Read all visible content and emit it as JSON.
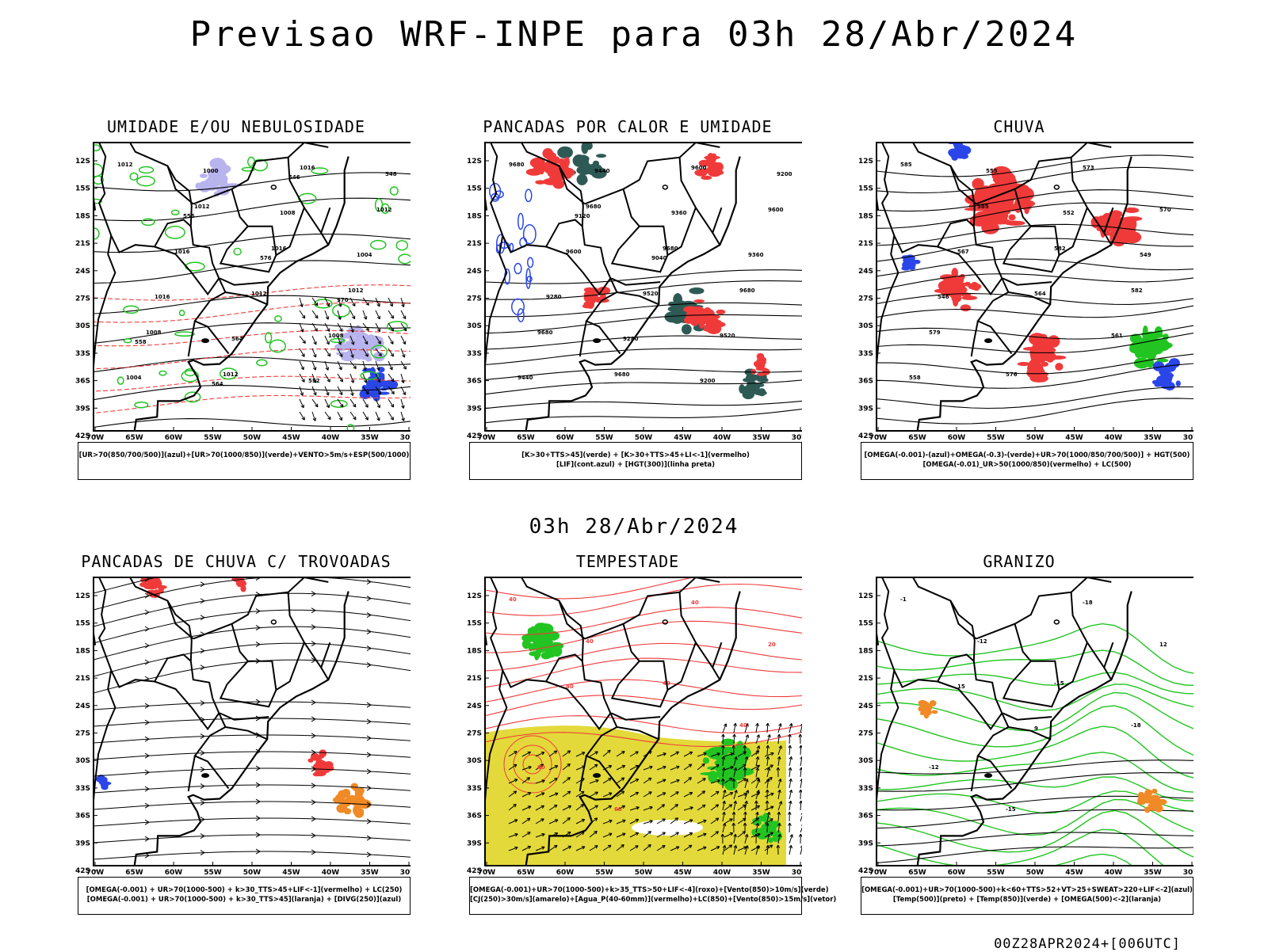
{
  "title": "Previsao WRF-INPE  para 03h 28/Abr/2024",
  "mid_time": "03h 28/Abr/2024",
  "footer": "00Z28APR2024+[006UTC]",
  "axes": {
    "lat_labels": [
      "12S",
      "15S",
      "18S",
      "21S",
      "24S",
      "27S",
      "30S",
      "33S",
      "36S",
      "39S",
      "42S"
    ],
    "lon_labels": [
      "70W",
      "65W",
      "60W",
      "55W",
      "50W",
      "45W",
      "40W",
      "35W",
      "30W"
    ]
  },
  "colors": {
    "red": "#f03a3a",
    "green": "#22c422",
    "blue": "#2a46e8",
    "lightblue": "#b8b4ee",
    "orange": "#f08a26",
    "yellow": "#e3d93a",
    "darkteal": "#2e5a55",
    "black": "#000000"
  },
  "panels": [
    {
      "id": "umidade",
      "title": "UMIDADE E/OU NEBULOSIDADE",
      "legend": [
        "[UR>70(850/700/500)](azul)+[UR>70(1000/850)](verde)+VENTO>5m/s+ESP(500/1000)"
      ],
      "contour_labels": [
        "1012",
        "1012",
        "1016",
        "1012",
        "1008",
        "1012",
        "1016",
        "1012",
        "1016",
        "1012",
        "1008",
        "1004",
        "1000",
        "1008",
        "1004",
        "1016",
        "564",
        "552",
        "548",
        "556",
        "576",
        "570",
        "558",
        "564",
        "546"
      ]
    },
    {
      "id": "pancadas-calor",
      "title": "PANCADAS POR CALOR E UMIDADE",
      "legend": [
        "[K>30+TTS>45](verde) + [K>30+TTS>45+LI<-1](vermelho)",
        "[LIF](cont.azul) + [HGT(300)](linha preta)"
      ],
      "contour_labels": [
        "9680",
        "9680",
        "9680",
        "9680",
        "9680",
        "9680",
        "9600",
        "9600",
        "9600",
        "9520",
        "9520",
        "9440",
        "9440",
        "9360",
        "9360",
        "9280",
        "9280",
        "9200",
        "9200",
        "9120",
        "9040"
      ]
    },
    {
      "id": "chuva",
      "title": "CHUVA",
      "legend": [
        "[OMEGA(-0.001)-(azul)+OMEGA(-0.3)-(verde)+UR>70(1000/850/700/500)] + HGT(500)",
        "[OMEGA(-0.01)_UR>50(1000/850)(vermelho) + LC(500)"
      ],
      "contour_labels": [
        "585",
        "585",
        "582",
        "582",
        "579",
        "576",
        "573",
        "570",
        "567",
        "564",
        "561",
        "558",
        "555",
        "552",
        "549",
        "546"
      ]
    },
    {
      "id": "pancadas-trovoadas",
      "title": "PANCADAS DE CHUVA C/ TROVOADAS",
      "legend": [
        "[OMEGA(-0.001) + UR>70(1000-500) + k>30_TTS>45+LIF<-1](vermelho) + LC(250)",
        "[OMEGA(-0.001) + UR>70(1000-500) + k>30_TTS>45](laranja) + [DIVG(250)](azul)"
      ],
      "contour_labels": []
    },
    {
      "id": "tempestade",
      "title": "TEMPESTADE",
      "legend": [
        "[OMEGA(-0.001)+UR>70(1000-500)+k>35_TTS>50+LIF<-4](roxo)+[Vento(850)>10m/s](verde)",
        "[CJ(250)>30m/s](amarelo)+[Agua_P(40-60mm)](vermelho)+LC(850)+[Vento(850)>15m/s](vetor)"
      ],
      "contour_labels": [
        "40",
        "40",
        "40",
        "40",
        "60",
        "60",
        "40",
        "20",
        "40"
      ]
    },
    {
      "id": "granizo",
      "title": "GRANIZO",
      "legend": [
        "[OMEGA(-0.001)+UR>70(1000-500)+k<60+TTS>52+VT>25+SWEAT>220+LIF<-2](azul)",
        "[Temp(500)](preto) + [Temp(850)](verde) + [OMEGA(500)<-2](laranja)"
      ],
      "contour_labels": [
        "-1",
        "-12",
        "-15",
        "-18",
        "-12",
        "-15",
        "-18",
        "12",
        "15",
        "9"
      ]
    }
  ]
}
